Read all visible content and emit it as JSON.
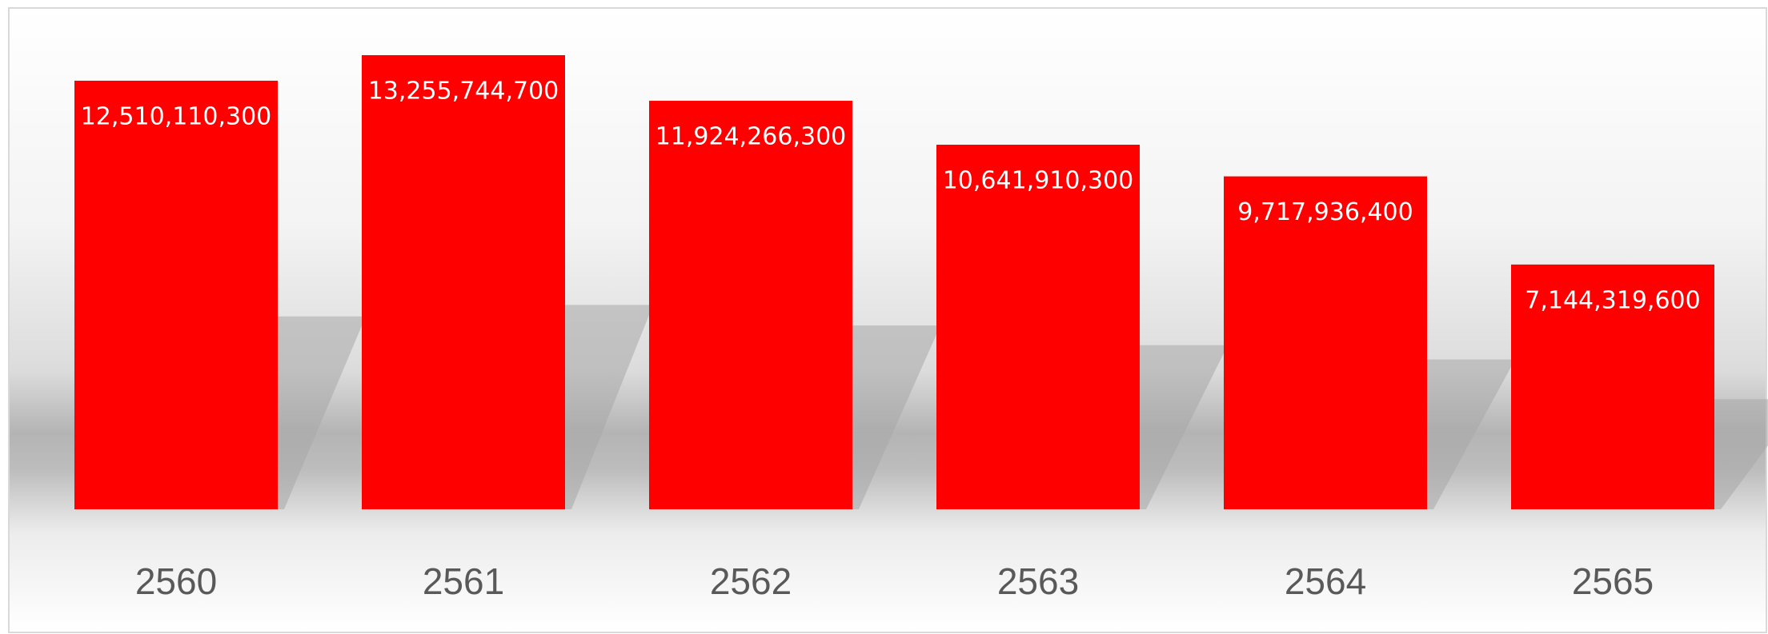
{
  "chart_data": {
    "type": "bar",
    "categories": [
      "2560",
      "2561",
      "2562",
      "2563",
      "2564",
      "2565"
    ],
    "values": [
      12510110300,
      13255744700,
      11924266300,
      10641910300,
      9717936400,
      7144319600
    ],
    "value_labels": [
      "12,510,110,300",
      "13,255,744,700",
      "11,924,266,300",
      "10,641,910,300",
      "9,717,936,400",
      "7,144,319,600"
    ],
    "color": "#ff0000"
  }
}
